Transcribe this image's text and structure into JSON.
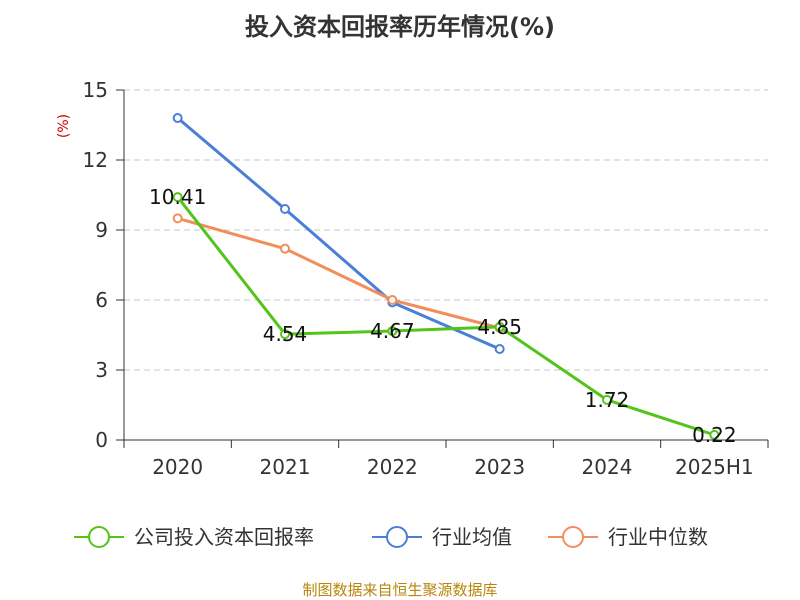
{
  "chart_data": {
    "type": "line",
    "title": "投入资本回报率历年情况(%)",
    "ylabel": "(%)",
    "xlabel": "",
    "categories": [
      "2020",
      "2021",
      "2022",
      "2023",
      "2024",
      "2025H1"
    ],
    "ylim": [
      0,
      15
    ],
    "yticks": [
      0,
      3,
      6,
      9,
      12,
      15
    ],
    "grid": true,
    "legend_position": "bottom",
    "series": [
      {
        "name": "公司投入资本回报率",
        "color": "#52c41a",
        "values": [
          10.41,
          4.54,
          4.67,
          4.85,
          1.72,
          0.22
        ],
        "labels": [
          "10.41",
          "4.54",
          "4.67",
          "4.85",
          "1.72",
          "0.22"
        ]
      },
      {
        "name": "行业均值",
        "color": "#4a7fd8",
        "values": [
          13.8,
          9.9,
          5.9,
          3.9,
          null,
          null
        ]
      },
      {
        "name": "行业中位数",
        "color": "#f28e5b",
        "values": [
          9.5,
          8.2,
          6.0,
          4.8,
          null,
          null
        ]
      }
    ]
  },
  "source": "制图数据来自恒生聚源数据库"
}
